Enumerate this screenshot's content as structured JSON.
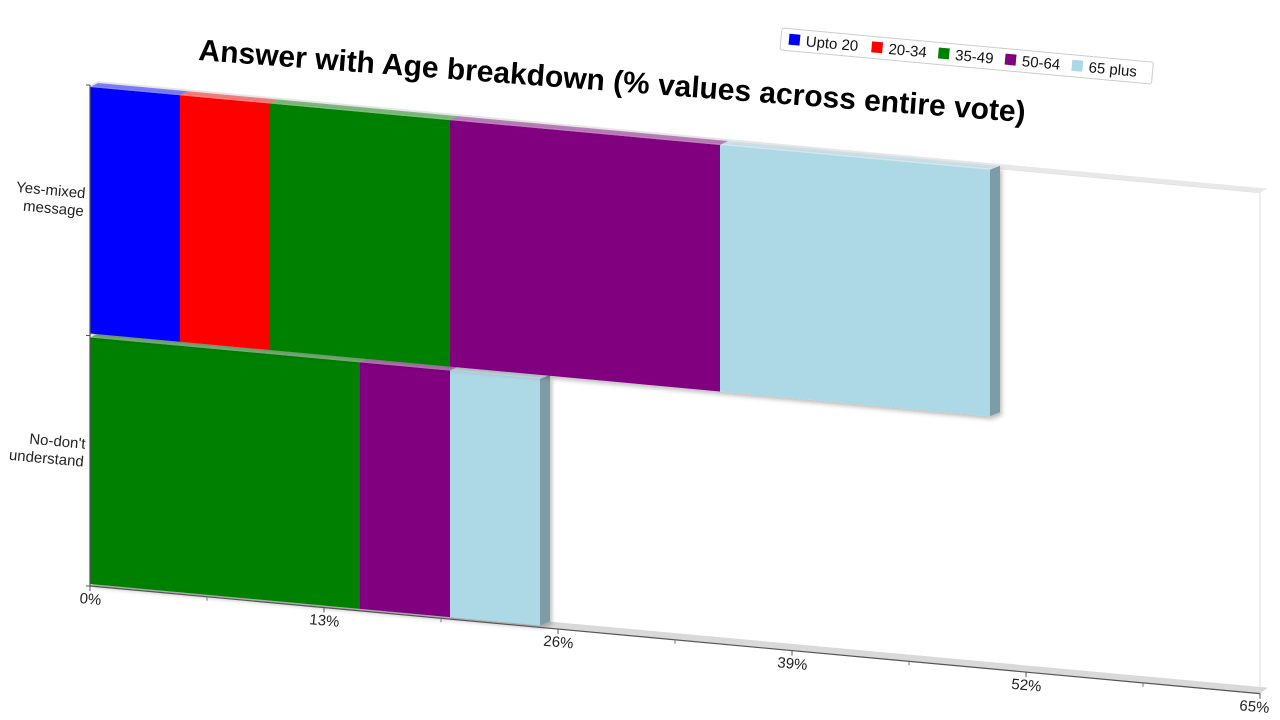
{
  "chart_data": {
    "type": "bar",
    "orientation": "horizontal",
    "stacked": true,
    "title": "Answer with Age breakdown (% values across entire vote)",
    "categories": [
      "Yes-mixed message",
      "No-don't understand"
    ],
    "category_lines": [
      [
        "Yes-mixed",
        "message"
      ],
      [
        "No-don't",
        "understand"
      ]
    ],
    "series": [
      {
        "name": "Upto 20",
        "color": "#0000ff",
        "values": [
          5,
          0
        ]
      },
      {
        "name": "20-34",
        "color": "#ff0000",
        "values": [
          5,
          0
        ]
      },
      {
        "name": "35-49",
        "color": "#008000",
        "values": [
          10,
          15
        ]
      },
      {
        "name": "50-64",
        "color": "#800080",
        "values": [
          15,
          5
        ]
      },
      {
        "name": "65 plus",
        "color": "#add8e6",
        "values": [
          15,
          5
        ]
      }
    ],
    "xlim": [
      0,
      65
    ],
    "xticks": [
      0,
      13,
      26,
      39,
      52,
      65
    ],
    "xtick_labels": [
      "0%",
      "13%",
      "26%",
      "39%",
      "52%",
      "65%"
    ],
    "legend_position": "top-right",
    "grid": false
  }
}
